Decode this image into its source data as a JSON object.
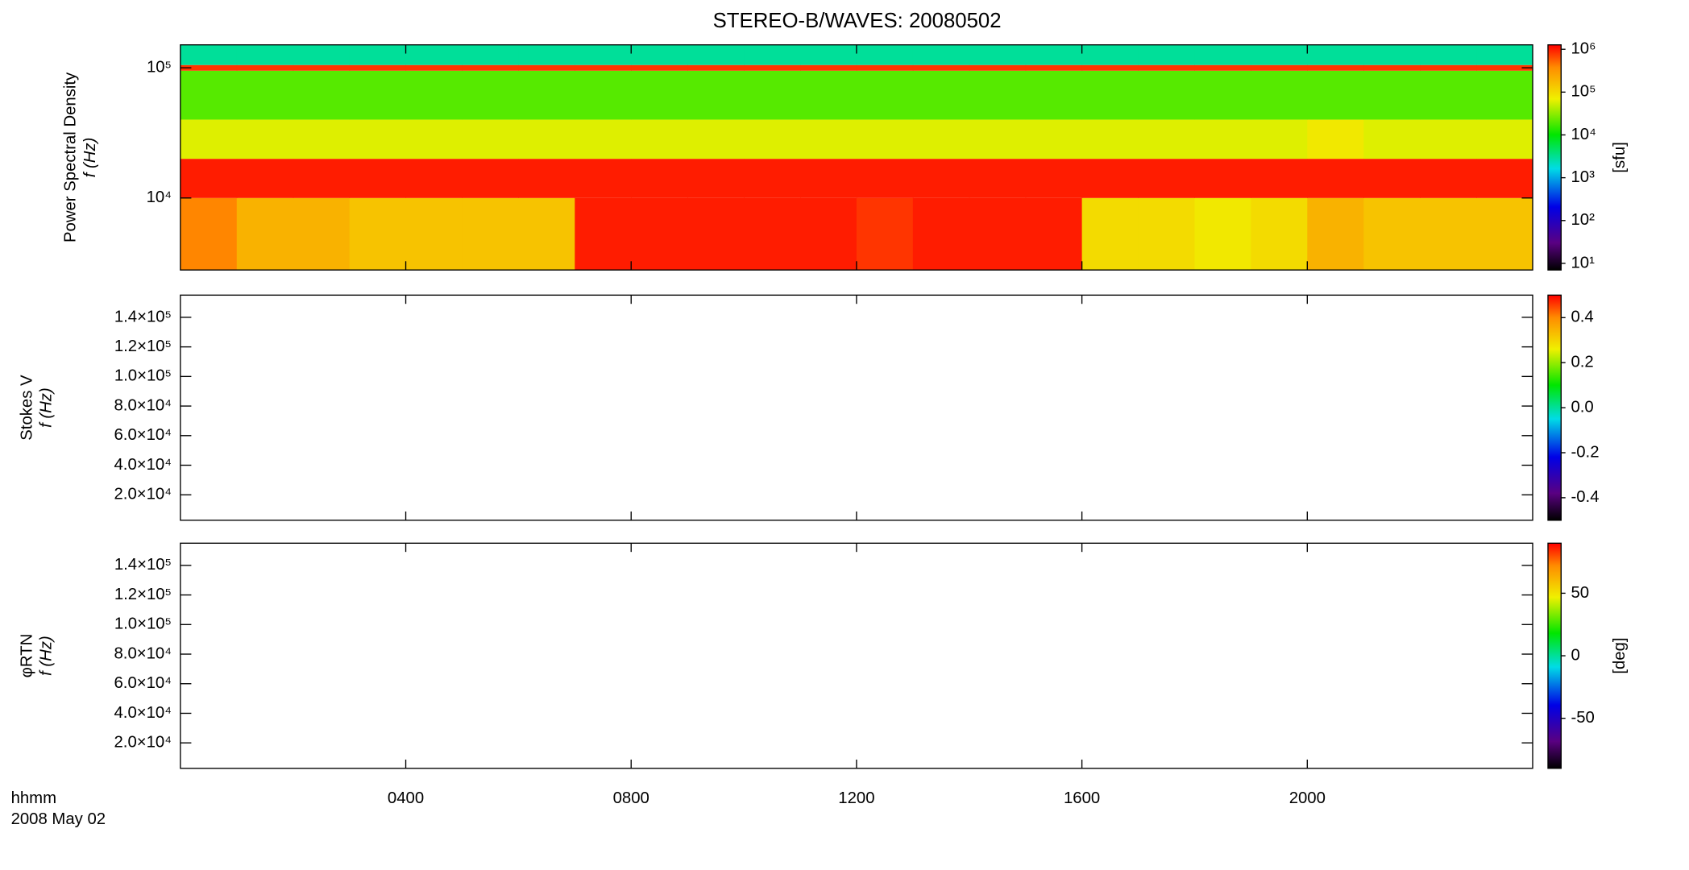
{
  "title": "STEREO-B/WAVES: 20080502",
  "time_axis": {
    "label": "hhmm",
    "date": "2008 May 02",
    "xlim": [
      0,
      24
    ],
    "xticks": [
      {
        "value": 4,
        "label": "0400"
      },
      {
        "value": 8,
        "label": "0800"
      },
      {
        "value": 12,
        "label": "1200"
      },
      {
        "value": 16,
        "label": "1600"
      },
      {
        "value": 20,
        "label": "2000"
      }
    ]
  },
  "chart_data": [
    {
      "type": "heatmap",
      "ylabel": [
        "Power Spectral Density",
        "f (Hz)"
      ],
      "ylog": true,
      "ylim": [
        2800,
        150000
      ],
      "yticks": [
        {
          "value": 10000,
          "label": "10⁴"
        },
        {
          "value": 100000,
          "label": "10⁵"
        }
      ],
      "colormap": "rainbow",
      "clog": true,
      "clim": [
        7,
        1270000
      ],
      "clabel": "[sfu]",
      "cticks": [
        {
          "value": 10,
          "label": "10¹"
        },
        {
          "value": 100,
          "label": "10²"
        },
        {
          "value": 1000,
          "label": "10³"
        },
        {
          "value": 10000,
          "label": "10⁴"
        },
        {
          "value": 100000,
          "label": "10⁵"
        },
        {
          "value": 1000000,
          "label": "10⁶"
        }
      ],
      "x_edges": [
        0,
        1,
        2,
        3,
        4,
        5,
        6,
        7,
        8,
        9,
        10,
        11,
        12,
        13,
        14,
        15,
        16,
        17,
        18,
        19,
        20,
        21,
        22,
        23,
        24
      ],
      "y_edges": [
        2800,
        10000,
        20000,
        40000,
        95000,
        105000,
        150000
      ],
      "z": [
        [
          400000,
          200000,
          200000,
          150000,
          150000,
          150000,
          150000,
          1000000,
          1000000,
          1000000,
          1000000,
          1000000,
          800000,
          1000000,
          1000000,
          1000000,
          100000,
          100000,
          80000,
          100000,
          200000,
          150000,
          150000,
          150000
        ],
        [
          1000000,
          1000000,
          1000000,
          1000000,
          1000000,
          1000000,
          1000000,
          1000000,
          1000000,
          1000000,
          1000000,
          1000000,
          1000000,
          1000000,
          1000000,
          1000000,
          1000000,
          1000000,
          1000000,
          1000000,
          1000000,
          1000000,
          1000000,
          1000000
        ],
        [
          60000,
          60000,
          60000,
          60000,
          60000,
          60000,
          60000,
          60000,
          60000,
          60000,
          60000,
          60000,
          60000,
          60000,
          60000,
          60000,
          60000,
          60000,
          60000,
          60000,
          80000,
          60000,
          60000,
          60000
        ],
        [
          20000,
          20000,
          20000,
          20000,
          20000,
          20000,
          20000,
          20000,
          20000,
          20000,
          20000,
          20000,
          20000,
          20000,
          20000,
          20000,
          20000,
          20000,
          20000,
          20000,
          20000,
          20000,
          20000,
          20000
        ],
        [
          800000,
          800000,
          800000,
          800000,
          800000,
          800000,
          800000,
          800000,
          800000,
          800000,
          800000,
          800000,
          800000,
          800000,
          800000,
          800000,
          800000,
          800000,
          800000,
          800000,
          800000,
          800000,
          800000,
          800000
        ],
        [
          3000,
          3000,
          3000,
          3000,
          3000,
          3000,
          3000,
          3000,
          3000,
          3000,
          3000,
          3000,
          3000,
          3000,
          3000,
          3000,
          3000,
          3000,
          3000,
          3000,
          3000,
          3000,
          3000,
          3000
        ]
      ]
    },
    {
      "type": "heatmap",
      "ylabel": [
        "Stokes V",
        "f (Hz)"
      ],
      "ylog": false,
      "ylim": [
        2800,
        155000
      ],
      "yticks": [
        {
          "value": 20000,
          "label": "2.0×10⁴"
        },
        {
          "value": 40000,
          "label": "4.0×10⁴"
        },
        {
          "value": 60000,
          "label": "6.0×10⁴"
        },
        {
          "value": 80000,
          "label": "8.0×10⁴"
        },
        {
          "value": 100000,
          "label": "1.0×10⁵"
        },
        {
          "value": 120000,
          "label": "1.2×10⁵"
        },
        {
          "value": 140000,
          "label": "1.4×10⁵"
        }
      ],
      "colormap": "rainbow",
      "clog": false,
      "clim": [
        -0.5,
        0.5
      ],
      "cticks": [
        -0.4,
        -0.2,
        {
          "value": 0,
          "label": "0.0"
        },
        0.2,
        0.4
      ]
    },
    {
      "type": "heatmap",
      "ylabel": [
        "φRTN",
        "f (Hz)"
      ],
      "ylog": false,
      "ylim": [
        2800,
        155000
      ],
      "yticks": [
        {
          "value": 20000,
          "label": "2.0×10⁴"
        },
        {
          "value": 40000,
          "label": "4.0×10⁴"
        },
        {
          "value": 60000,
          "label": "6.0×10⁴"
        },
        {
          "value": 80000,
          "label": "8.0×10⁴"
        },
        {
          "value": 100000,
          "label": "1.0×10⁵"
        },
        {
          "value": 120000,
          "label": "1.2×10⁵"
        },
        {
          "value": 140000,
          "label": "1.4×10⁵"
        }
      ],
      "colormap": "rainbow",
      "clog": false,
      "clim": [
        -90,
        90
      ],
      "clabel": "[deg]",
      "cticks": [
        -50,
        0,
        50
      ]
    }
  ]
}
